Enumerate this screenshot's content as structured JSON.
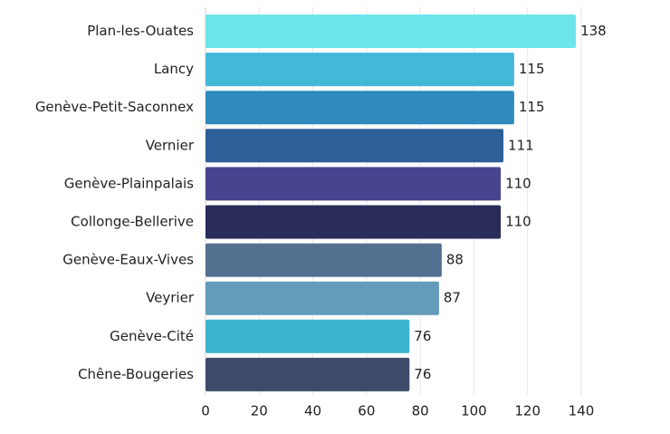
{
  "chart_data": {
    "type": "bar",
    "orientation": "horizontal",
    "categories": [
      "Plan-les-Ouates",
      "Lancy",
      "Genève-Petit-Saconnex",
      "Vernier",
      "Genève-Plainpalais",
      "Collonge-Bellerive",
      "Genève-Eaux-Vives",
      "Veyrier",
      "Genève-Cité",
      "Chêne-Bougeries"
    ],
    "values": [
      138,
      115,
      115,
      111,
      110,
      110,
      88,
      87,
      76,
      76
    ],
    "colors": [
      "#6de6ea",
      "#43b8d9",
      "#2e8bbb",
      "#2d5f99",
      "#47458f",
      "#2a2c5a",
      "#547091",
      "#629cba",
      "#3cb4ce",
      "#3d4a6a"
    ],
    "title": "",
    "xlabel": "",
    "ylabel": "",
    "xlim": [
      0,
      145
    ],
    "xticks": [
      0,
      20,
      40,
      60,
      80,
      100,
      120,
      140
    ],
    "grid": "vertical",
    "legend": "none"
  }
}
